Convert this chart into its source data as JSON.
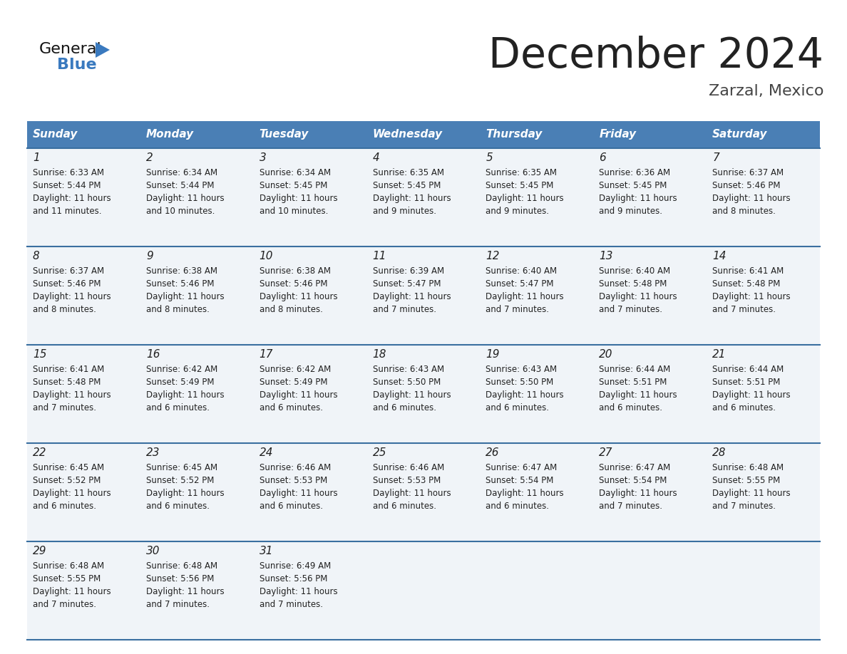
{
  "title": "December 2024",
  "subtitle": "Zarzal, Mexico",
  "header_color": "#4a7fb5",
  "header_text_color": "#ffffff",
  "day_names": [
    "Sunday",
    "Monday",
    "Tuesday",
    "Wednesday",
    "Thursday",
    "Friday",
    "Saturday"
  ],
  "bg_color": "#ffffff",
  "cell_bg_even": "#f0f4f8",
  "cell_bg_odd": "#ffffff",
  "border_color": "#3a6fa0",
  "text_color": "#222222",
  "subtitle_color": "#444444",
  "days": [
    {
      "day": 1,
      "col": 0,
      "row": 0,
      "sunrise": "6:33 AM",
      "sunset": "5:44 PM",
      "daylight": "11 hours and 11 minutes."
    },
    {
      "day": 2,
      "col": 1,
      "row": 0,
      "sunrise": "6:34 AM",
      "sunset": "5:44 PM",
      "daylight": "11 hours and 10 minutes."
    },
    {
      "day": 3,
      "col": 2,
      "row": 0,
      "sunrise": "6:34 AM",
      "sunset": "5:45 PM",
      "daylight": "11 hours and 10 minutes."
    },
    {
      "day": 4,
      "col": 3,
      "row": 0,
      "sunrise": "6:35 AM",
      "sunset": "5:45 PM",
      "daylight": "11 hours and 9 minutes."
    },
    {
      "day": 5,
      "col": 4,
      "row": 0,
      "sunrise": "6:35 AM",
      "sunset": "5:45 PM",
      "daylight": "11 hours and 9 minutes."
    },
    {
      "day": 6,
      "col": 5,
      "row": 0,
      "sunrise": "6:36 AM",
      "sunset": "5:45 PM",
      "daylight": "11 hours and 9 minutes."
    },
    {
      "day": 7,
      "col": 6,
      "row": 0,
      "sunrise": "6:37 AM",
      "sunset": "5:46 PM",
      "daylight": "11 hours and 8 minutes."
    },
    {
      "day": 8,
      "col": 0,
      "row": 1,
      "sunrise": "6:37 AM",
      "sunset": "5:46 PM",
      "daylight": "11 hours and 8 minutes."
    },
    {
      "day": 9,
      "col": 1,
      "row": 1,
      "sunrise": "6:38 AM",
      "sunset": "5:46 PM",
      "daylight": "11 hours and 8 minutes."
    },
    {
      "day": 10,
      "col": 2,
      "row": 1,
      "sunrise": "6:38 AM",
      "sunset": "5:46 PM",
      "daylight": "11 hours and 8 minutes."
    },
    {
      "day": 11,
      "col": 3,
      "row": 1,
      "sunrise": "6:39 AM",
      "sunset": "5:47 PM",
      "daylight": "11 hours and 7 minutes."
    },
    {
      "day": 12,
      "col": 4,
      "row": 1,
      "sunrise": "6:40 AM",
      "sunset": "5:47 PM",
      "daylight": "11 hours and 7 minutes."
    },
    {
      "day": 13,
      "col": 5,
      "row": 1,
      "sunrise": "6:40 AM",
      "sunset": "5:48 PM",
      "daylight": "11 hours and 7 minutes."
    },
    {
      "day": 14,
      "col": 6,
      "row": 1,
      "sunrise": "6:41 AM",
      "sunset": "5:48 PM",
      "daylight": "11 hours and 7 minutes."
    },
    {
      "day": 15,
      "col": 0,
      "row": 2,
      "sunrise": "6:41 AM",
      "sunset": "5:48 PM",
      "daylight": "11 hours and 7 minutes."
    },
    {
      "day": 16,
      "col": 1,
      "row": 2,
      "sunrise": "6:42 AM",
      "sunset": "5:49 PM",
      "daylight": "11 hours and 6 minutes."
    },
    {
      "day": 17,
      "col": 2,
      "row": 2,
      "sunrise": "6:42 AM",
      "sunset": "5:49 PM",
      "daylight": "11 hours and 6 minutes."
    },
    {
      "day": 18,
      "col": 3,
      "row": 2,
      "sunrise": "6:43 AM",
      "sunset": "5:50 PM",
      "daylight": "11 hours and 6 minutes."
    },
    {
      "day": 19,
      "col": 4,
      "row": 2,
      "sunrise": "6:43 AM",
      "sunset": "5:50 PM",
      "daylight": "11 hours and 6 minutes."
    },
    {
      "day": 20,
      "col": 5,
      "row": 2,
      "sunrise": "6:44 AM",
      "sunset": "5:51 PM",
      "daylight": "11 hours and 6 minutes."
    },
    {
      "day": 21,
      "col": 6,
      "row": 2,
      "sunrise": "6:44 AM",
      "sunset": "5:51 PM",
      "daylight": "11 hours and 6 minutes."
    },
    {
      "day": 22,
      "col": 0,
      "row": 3,
      "sunrise": "6:45 AM",
      "sunset": "5:52 PM",
      "daylight": "11 hours and 6 minutes."
    },
    {
      "day": 23,
      "col": 1,
      "row": 3,
      "sunrise": "6:45 AM",
      "sunset": "5:52 PM",
      "daylight": "11 hours and 6 minutes."
    },
    {
      "day": 24,
      "col": 2,
      "row": 3,
      "sunrise": "6:46 AM",
      "sunset": "5:53 PM",
      "daylight": "11 hours and 6 minutes."
    },
    {
      "day": 25,
      "col": 3,
      "row": 3,
      "sunrise": "6:46 AM",
      "sunset": "5:53 PM",
      "daylight": "11 hours and 6 minutes."
    },
    {
      "day": 26,
      "col": 4,
      "row": 3,
      "sunrise": "6:47 AM",
      "sunset": "5:54 PM",
      "daylight": "11 hours and 6 minutes."
    },
    {
      "day": 27,
      "col": 5,
      "row": 3,
      "sunrise": "6:47 AM",
      "sunset": "5:54 PM",
      "daylight": "11 hours and 7 minutes."
    },
    {
      "day": 28,
      "col": 6,
      "row": 3,
      "sunrise": "6:48 AM",
      "sunset": "5:55 PM",
      "daylight": "11 hours and 7 minutes."
    },
    {
      "day": 29,
      "col": 0,
      "row": 4,
      "sunrise": "6:48 AM",
      "sunset": "5:55 PM",
      "daylight": "11 hours and 7 minutes."
    },
    {
      "day": 30,
      "col": 1,
      "row": 4,
      "sunrise": "6:48 AM",
      "sunset": "5:56 PM",
      "daylight": "11 hours and 7 minutes."
    },
    {
      "day": 31,
      "col": 2,
      "row": 4,
      "sunrise": "6:49 AM",
      "sunset": "5:56 PM",
      "daylight": "11 hours and 7 minutes."
    }
  ],
  "logo_general_color": "#111111",
  "logo_blue_color": "#3a7abf",
  "logo_triangle_color": "#3a7abf",
  "title_fontsize": 42,
  "subtitle_fontsize": 16,
  "dayname_fontsize": 11,
  "daynum_fontsize": 11,
  "cell_fontsize": 8.5
}
